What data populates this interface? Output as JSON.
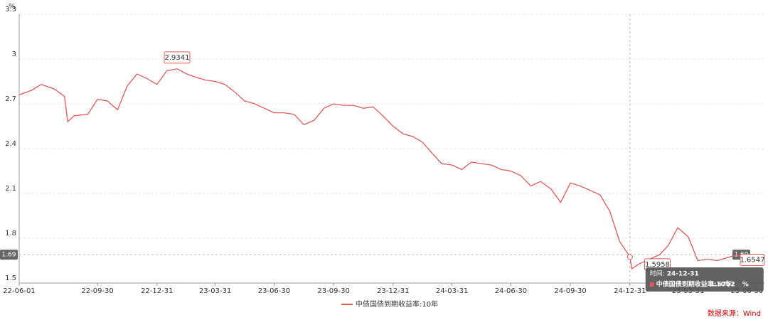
{
  "chart_data": {
    "type": "line",
    "y_unit": "%",
    "x": [
      "22-06-01",
      "22-06-20",
      "22-07-05",
      "22-07-25",
      "22-08-10",
      "22-08-15",
      "22-08-25",
      "22-09-15",
      "22-09-30",
      "22-10-15",
      "22-10-31",
      "22-11-15",
      "22-11-30",
      "22-12-15",
      "22-12-31",
      "23-01-15",
      "23-01-31",
      "23-02-15",
      "23-02-28",
      "23-03-15",
      "23-03-31",
      "23-04-15",
      "23-04-30",
      "23-05-15",
      "23-05-31",
      "23-06-15",
      "23-06-30",
      "23-07-15",
      "23-07-31",
      "23-08-15",
      "23-08-31",
      "23-09-15",
      "23-09-30",
      "23-10-15",
      "23-10-31",
      "23-11-15",
      "23-11-30",
      "23-12-15",
      "23-12-31",
      "24-01-15",
      "24-01-31",
      "24-02-15",
      "24-02-29",
      "24-03-15",
      "24-03-31",
      "24-04-15",
      "24-04-30",
      "24-05-15",
      "24-05-31",
      "24-06-15",
      "24-06-30",
      "24-07-15",
      "24-07-31",
      "24-08-15",
      "24-08-31",
      "24-09-15",
      "24-09-30",
      "24-10-15",
      "24-10-31",
      "24-11-15",
      "24-11-30",
      "24-12-15",
      "24-12-31",
      "25-01-03",
      "25-01-15",
      "25-01-31",
      "25-02-15",
      "25-02-28",
      "25-03-15",
      "25-03-31",
      "25-04-15",
      "25-04-30",
      "25-05-15",
      "25-05-31",
      "25-06-15",
      "25-06-30",
      "25-07-10"
    ],
    "series": [
      {
        "name": "中债国债到期收益率:10年",
        "color": "#e05a5a",
        "values": [
          2.76,
          2.79,
          2.83,
          2.8,
          2.75,
          2.58,
          2.62,
          2.63,
          2.73,
          2.72,
          2.66,
          2.82,
          2.9,
          2.87,
          2.83,
          2.92,
          2.9341,
          2.9,
          2.88,
          2.86,
          2.85,
          2.83,
          2.78,
          2.72,
          2.7,
          2.67,
          2.64,
          2.64,
          2.63,
          2.56,
          2.59,
          2.67,
          2.7,
          2.69,
          2.69,
          2.67,
          2.68,
          2.62,
          2.55,
          2.5,
          2.48,
          2.44,
          2.37,
          2.3,
          2.29,
          2.26,
          2.31,
          2.3,
          2.29,
          2.26,
          2.25,
          2.22,
          2.15,
          2.18,
          2.13,
          2.04,
          2.17,
          2.15,
          2.12,
          2.09,
          1.98,
          1.78,
          1.6752,
          1.5958,
          1.63,
          1.66,
          1.69,
          1.75,
          1.87,
          1.81,
          1.65,
          1.66,
          1.65,
          1.67,
          1.69,
          1.65,
          1.6547
        ]
      }
    ],
    "ylim": [
      1.5,
      3.3
    ],
    "yticks": [
      1.5,
      1.8,
      2.1,
      2.4,
      2.7,
      3,
      3.3
    ],
    "xlim": [
      "22-06-01",
      "25-07-27"
    ],
    "xticks": [
      "22-06-01",
      "22-09-30",
      "22-12-31",
      "23-03-31",
      "23-06-30",
      "23-09-30",
      "23-12-31",
      "24-03-31",
      "24-06-30",
      "24-09-30",
      "24-12-31",
      "25-03-31",
      "25-06-30"
    ],
    "grid": true,
    "max_label": {
      "x": "23-01-31",
      "value": 2.9341
    },
    "min_label": {
      "x": "25-01-03",
      "value": 1.5958
    },
    "last_label": {
      "x": "25-07-10",
      "value": 1.6547
    },
    "crosshair": {
      "x": "24-12-31",
      "value": 1.69
    },
    "tooltip": {
      "time_label": "时间:",
      "time": "24-12-31",
      "series_label": "中债国债到期收益率:10年:",
      "value": 1.6752,
      "unit": "%"
    },
    "source": "数据来源：Wind"
  }
}
